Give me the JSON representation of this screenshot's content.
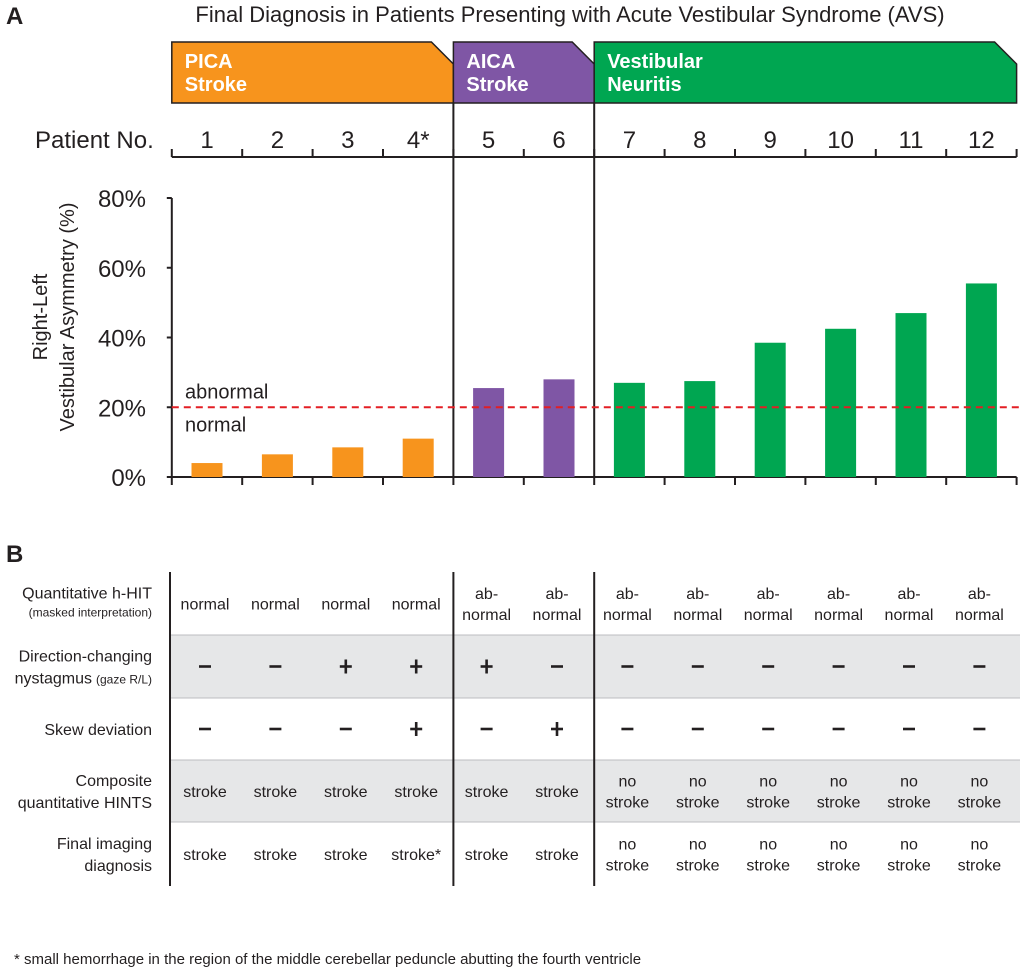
{
  "panel_a_letter": "A",
  "panel_b_letter": "B",
  "footnote": "* small hemorrhage in the region of the middle cerebellar peduncle abutting the fourth ventricle",
  "colors": {
    "pica": "#f7941d",
    "aica": "#7f56a5",
    "vn": "#00a651",
    "threshold": "#e31e24",
    "table_band": "#e6e7e8"
  },
  "chart_data": {
    "type": "bar",
    "title": "Final Diagnosis in Patients Presenting with Acute Vestibular Syndrome (AVS)",
    "x_header": "Patient No.",
    "ylabel_lines": [
      "Right-Left",
      "Vestibular Asymmetry (%)"
    ],
    "categories": [
      "1",
      "2",
      "3",
      "4*",
      "5",
      "6",
      "7",
      "8",
      "9",
      "10",
      "11",
      "12"
    ],
    "groups": [
      {
        "lines": [
          "PICA",
          "Stroke"
        ],
        "color": "#f7941d",
        "patients": [
          1,
          2,
          3,
          4
        ]
      },
      {
        "lines": [
          "AICA",
          "Stroke"
        ],
        "color": "#7f56a5",
        "patients": [
          5,
          6
        ]
      },
      {
        "lines": [
          "Vestibular",
          "Neuritis"
        ],
        "color": "#00a651",
        "patients": [
          7,
          8,
          9,
          10,
          11,
          12
        ]
      }
    ],
    "values": [
      4,
      6.5,
      8.5,
      11,
      25.5,
      28,
      27,
      27.5,
      38.5,
      42.5,
      47,
      55.5
    ],
    "ylim": [
      0,
      80
    ],
    "yticks": [
      0,
      20,
      40,
      60,
      80
    ],
    "ytick_labels": [
      "0%",
      "20%",
      "40%",
      "60%",
      "80%"
    ],
    "threshold": {
      "value": 20,
      "label_above": "abnormal",
      "label_below": "normal"
    }
  },
  "table": {
    "rows": [
      {
        "label_lines": [
          "Quantitative h-HIT"
        ],
        "label_small": "(masked interpretation)",
        "shaded": false,
        "cells": [
          "normal",
          "normal",
          "normal",
          "normal",
          "ab-\nnormal",
          "ab-\nnormal",
          "ab-\nnormal",
          "ab-\nnormal",
          "ab-\nnormal",
          "ab-\nnormal",
          "ab-\nnormal",
          "ab-\nnormal"
        ]
      },
      {
        "label_lines": [
          "Direction-changing",
          "nystagmus"
        ],
        "label_small": "(gaze R/L)",
        "shaded": true,
        "cells": [
          "-",
          "-",
          "+",
          "+",
          "+",
          "-",
          "-",
          "-",
          "-",
          "-",
          "-",
          "-"
        ]
      },
      {
        "label_lines": [
          "Skew deviation"
        ],
        "label_small": "",
        "shaded": false,
        "cells": [
          "-",
          "-",
          "-",
          "+",
          "-",
          "+",
          "-",
          "-",
          "-",
          "-",
          "-",
          "-"
        ]
      },
      {
        "label_lines": [
          "Composite",
          "quantitative HINTS"
        ],
        "label_small": "",
        "shaded": true,
        "cells": [
          "stroke",
          "stroke",
          "stroke",
          "stroke",
          "stroke",
          "stroke",
          "no\nstroke",
          "no\nstroke",
          "no\nstroke",
          "no\nstroke",
          "no\nstroke",
          "no\nstroke"
        ]
      },
      {
        "label_lines": [
          "Final imaging",
          "diagnosis"
        ],
        "label_small": "",
        "shaded": false,
        "cells": [
          "stroke",
          "stroke",
          "stroke",
          "stroke*",
          "stroke",
          "stroke",
          "no\nstroke",
          "no\nstroke",
          "no\nstroke",
          "no\nstroke",
          "no\nstroke",
          "no\nstroke"
        ]
      }
    ]
  }
}
